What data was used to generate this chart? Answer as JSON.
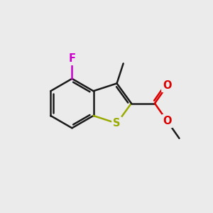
{
  "background_color": "#ebebeb",
  "bond_color": "#1a1a1a",
  "S_color": "#9aaa00",
  "F_color": "#cc00cc",
  "O_color": "#dd0000",
  "bond_width": 1.8,
  "figsize": [
    3.0,
    3.0
  ],
  "dpi": 100,
  "xlim": [
    0,
    10
  ],
  "ylim": [
    0,
    10
  ]
}
